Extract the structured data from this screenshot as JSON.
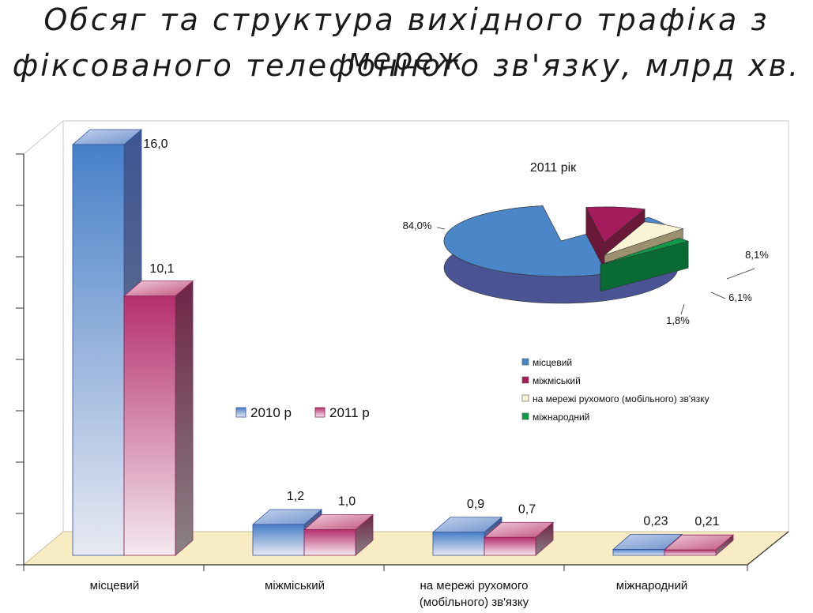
{
  "title_line1": "Обсяг та структура вихідного трафіка з мереж",
  "title_line2": "фіксованого телефонного зв'язку, млрд хв.",
  "chart_data": [
    {
      "type": "bar",
      "categories": [
        "місцевий",
        "міжміський",
        "на мережі рухомого (мобільного) зв'язку",
        "міжнародний"
      ],
      "category_lines": [
        [
          "місцевий"
        ],
        [
          "міжміський"
        ],
        [
          "на мережі рухомого",
          "(мобільного) зв'язку"
        ],
        [
          "міжнародний"
        ]
      ],
      "series": [
        {
          "name": "2010 р",
          "values": [
            16.0,
            1.2,
            0.9,
            0.23
          ],
          "labels": [
            "16,0",
            "1,2",
            "0,9",
            "0,23"
          ],
          "color": "#4a7fc9"
        },
        {
          "name": "2011 р",
          "values": [
            10.1,
            1.0,
            0.7,
            0.21
          ],
          "labels": [
            "10,1",
            "1,0",
            "0,7",
            "0,21"
          ],
          "color": "#b5306e"
        }
      ],
      "ylim": [
        0,
        16.5
      ],
      "grid": false,
      "legend": "center"
    },
    {
      "type": "pie",
      "title": "2011 рік",
      "labels": [
        "місцевий",
        "міжміський",
        "на мережі рухомого (мобільного) зв'язку",
        "міжнародний"
      ],
      "values": [
        84.0,
        8.1,
        6.1,
        1.8
      ],
      "value_labels": [
        "84,0%",
        "8,1%",
        "6,1%",
        "1,8%"
      ],
      "colors": [
        "#4a86c8",
        "#a51c5c",
        "#fbf3d6",
        "#0f9a4a"
      ],
      "legend": "bottom"
    }
  ]
}
